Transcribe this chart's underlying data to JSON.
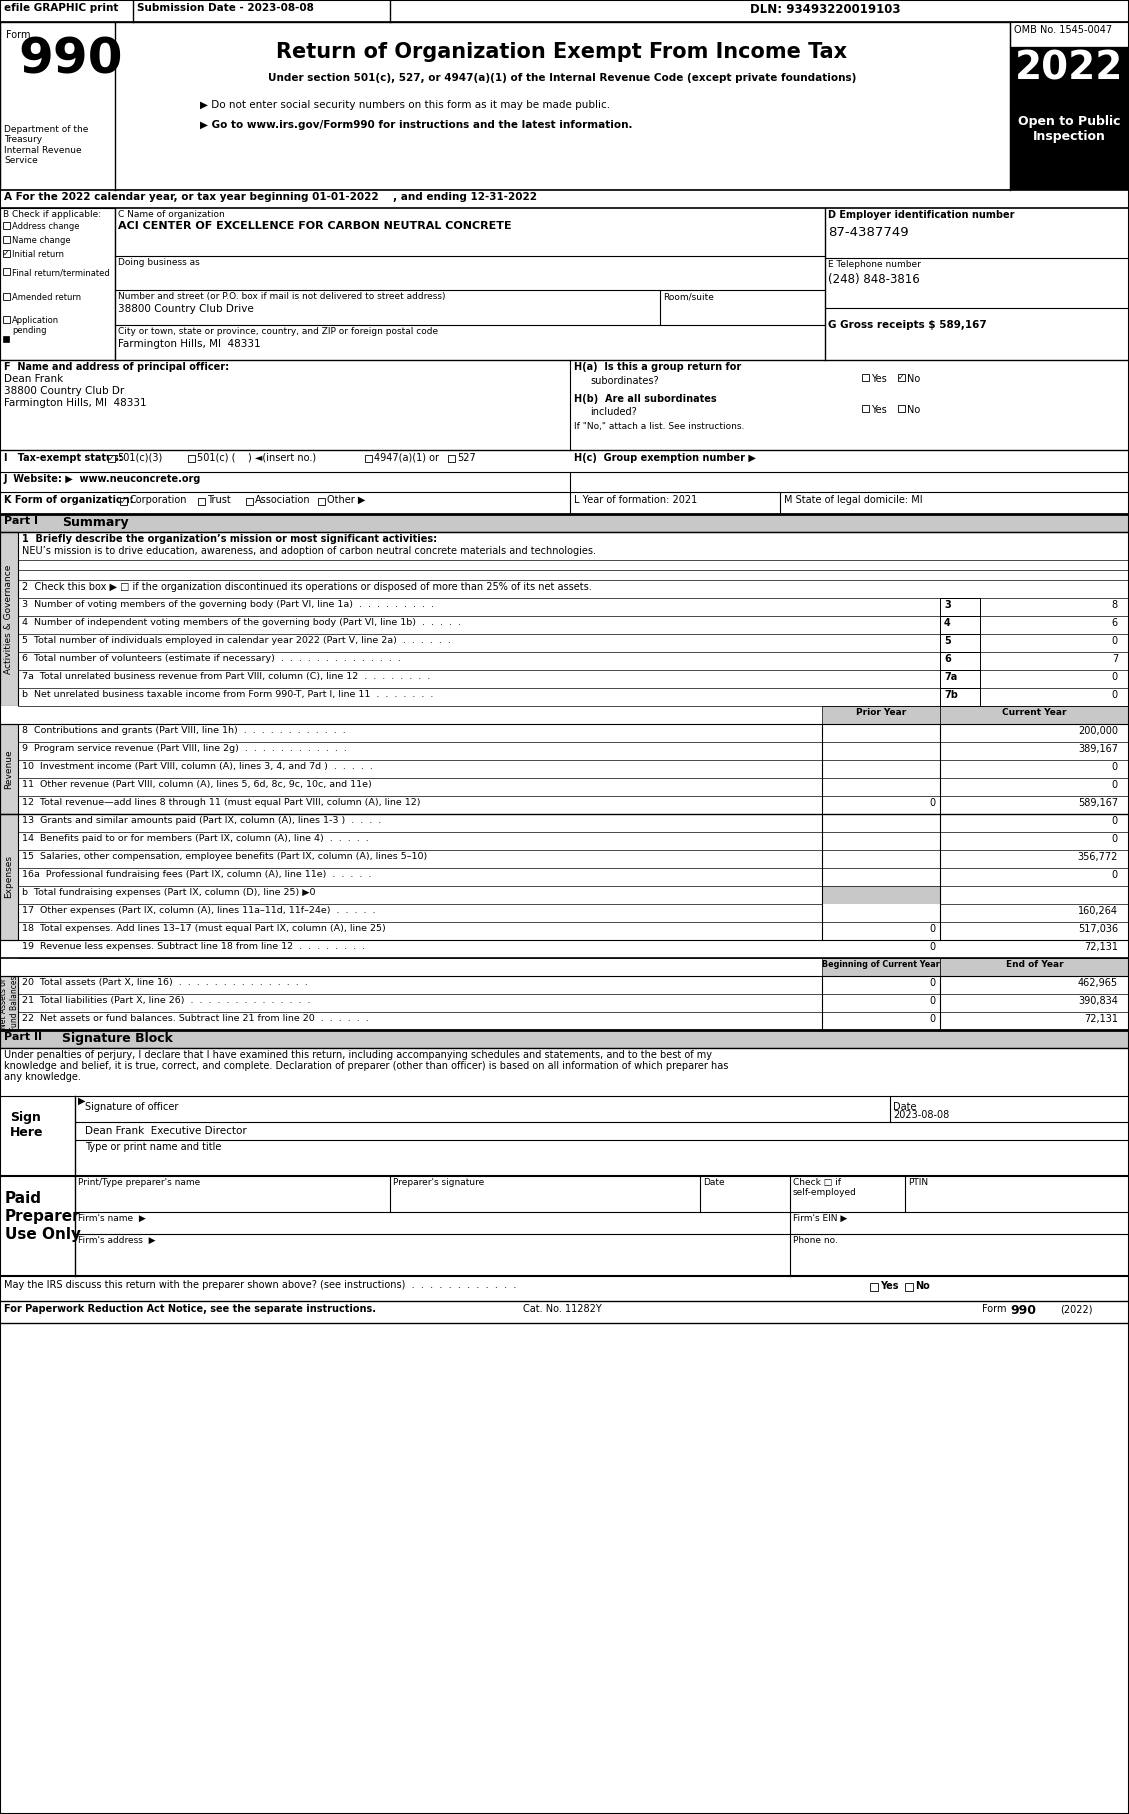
{
  "efile_text": "efile GRAPHIC print",
  "submission_date": "Submission Date - 2023-08-08",
  "dln": "DLN: 93493220019103",
  "form_number": "990",
  "title": "Return of Organization Exempt From Income Tax",
  "subtitle1": "Under section 501(c), 527, or 4947(a)(1) of the Internal Revenue Code (except private foundations)",
  "bullet1": "▶ Do not enter social security numbers on this form as it may be made public.",
  "bullet2": "▶ Go to www.irs.gov/Form990 for instructions and the latest information.",
  "omb": "OMB No. 1545-0047",
  "year": "2022",
  "open_public": "Open to Public\nInspection",
  "dept_line1": "Department of the",
  "dept_line2": "Treasury",
  "dept_line3": "Internal Revenue",
  "dept_line4": "Service",
  "tax_year_line": "A For the 2022 calendar year, or tax year beginning 01-01-2022    , and ending 12-31-2022",
  "b_label": "B Check if applicable:",
  "checkboxes_b": [
    "Address change",
    "Name change",
    "Initial return",
    "Final return/terminated",
    "Amended return",
    "Application\npending"
  ],
  "checked_b": [
    false,
    false,
    true,
    false,
    false,
    false
  ],
  "c_label": "C Name of organization",
  "org_name": "ACI CENTER OF EXCELLENCE FOR CARBON NEUTRAL CONCRETE",
  "dba_label": "Doing business as",
  "street_label": "Number and street (or P.O. box if mail is not delivered to street address)",
  "street": "38800 Country Club Drive",
  "room_label": "Room/suite",
  "city_label": "City or town, state or province, country, and ZIP or foreign postal code",
  "city": "Farmington Hills, MI  48331",
  "d_label": "D Employer identification number",
  "ein": "87-4387749",
  "e_label": "E Telephone number",
  "phone": "(248) 848-3816",
  "g_label": "G Gross receipts $ ",
  "gross_receipts": "589,167",
  "f_label": "F  Name and address of principal officer:",
  "officer_name": "Dean Frank",
  "officer_addr1": "38800 Country Club Dr",
  "officer_addr2": "Farmington Hills, MI  48331",
  "ha_text": "H(a)  Is this a group return for",
  "ha_q": "subordinates?",
  "hb_text": "H(b)  Are all subordinates",
  "hb_q": "included?",
  "hb_note": "If \"No,\" attach a list. See instructions.",
  "hc_text": "H(c)  Group exemption number ▶",
  "i_label": "I   Tax-exempt status:",
  "j_label": "J  Website: ▶  www.neuconcrete.org",
  "k_label": "K Form of organization:",
  "l_label": "L Year of formation: 2021",
  "m_label": "M State of legal domicile: MI",
  "part1_label": "Part I",
  "part1_title": "Summary",
  "line1_label": "1  Briefly describe the organization’s mission or most significant activities:",
  "line1_text": "NEU’s mission is to drive education, awareness, and adoption of carbon neutral concrete materials and technologies.",
  "line2_label": "2  Check this box ▶ □ if the organization discontinued its operations or disposed of more than 25% of its net assets.",
  "line3_label": "3  Number of voting members of the governing body (Part VI, line 1a)  .  .  .  .  .  .  .  .  .",
  "line3_num": "3",
  "line3_val": "8",
  "line4_label": "4  Number of independent voting members of the governing body (Part VI, line 1b)  .  .  .  .  .",
  "line4_num": "4",
  "line4_val": "6",
  "line5_label": "5  Total number of individuals employed in calendar year 2022 (Part V, line 2a)  .  .  .  .  .  .",
  "line5_num": "5",
  "line5_val": "0",
  "line6_label": "6  Total number of volunteers (estimate if necessary)  .  .  .  .  .  .  .  .  .  .  .  .  .  .",
  "line6_num": "6",
  "line6_val": "7",
  "line7a_label": "7a  Total unrelated business revenue from Part VIII, column (C), line 12  .  .  .  .  .  .  .  .",
  "line7a_num": "7a",
  "line7a_val": "0",
  "line7b_label": "b  Net unrelated business taxable income from Form 990-T, Part I, line 11  .  .  .  .  .  .  .",
  "line7b_num": "7b",
  "line7b_val": "0",
  "rev_col_label_prior": "Prior Year",
  "rev_col_label_current": "Current Year",
  "line8_label": "8  Contributions and grants (Part VIII, line 1h)  .  .  .  .  .  .  .  .  .  .  .  .",
  "line8_prior": "",
  "line8_current": "200,000",
  "line9_label": "9  Program service revenue (Part VIII, line 2g)  .  .  .  .  .  .  .  .  .  .  .  .",
  "line9_prior": "",
  "line9_current": "389,167",
  "line10_label": "10  Investment income (Part VIII, column (A), lines 3, 4, and 7d )  .  .  .  .  .",
  "line10_prior": "",
  "line10_current": "0",
  "line11_label": "11  Other revenue (Part VIII, column (A), lines 5, 6d, 8c, 9c, 10c, and 11e)",
  "line11_prior": "",
  "line11_current": "0",
  "line12_label": "12  Total revenue—add lines 8 through 11 (must equal Part VIII, column (A), line 12)",
  "line12_prior": "0",
  "line12_current": "589,167",
  "line13_label": "13  Grants and similar amounts paid (Part IX, column (A), lines 1-3 )  .  .  .  .",
  "line13_prior": "",
  "line13_current": "0",
  "line14_label": "14  Benefits paid to or for members (Part IX, column (A), line 4)  .  .  .  .  .",
  "line14_prior": "",
  "line14_current": "0",
  "line15_label": "15  Salaries, other compensation, employee benefits (Part IX, column (A), lines 5–10)",
  "line15_prior": "",
  "line15_current": "356,772",
  "line16a_label": "16a  Professional fundraising fees (Part IX, column (A), line 11e)  .  .  .  .  .",
  "line16a_prior": "",
  "line16a_current": "0",
  "line16b_label": "b  Total fundraising expenses (Part IX, column (D), line 25) ▶0",
  "line17_label": "17  Other expenses (Part IX, column (A), lines 11a–11d, 11f–24e)  .  .  .  .  .",
  "line17_prior": "",
  "line17_current": "160,264",
  "line18_label": "18  Total expenses. Add lines 13–17 (must equal Part IX, column (A), line 25)",
  "line18_prior": "0",
  "line18_current": "517,036",
  "line19_label": "19  Revenue less expenses. Subtract line 18 from line 12  .  .  .  .  .  .  .  .",
  "line19_prior": "0",
  "line19_current": "72,131",
  "net_assets_prior_label": "Beginning of Current Year",
  "net_assets_current_label": "End of Year",
  "line20_label": "20  Total assets (Part X, line 16)  .  .  .  .  .  .  .  .  .  .  .  .  .  .  .",
  "line20_prior": "0",
  "line20_current": "462,965",
  "line21_label": "21  Total liabilities (Part X, line 26)  .  .  .  .  .  .  .  .  .  .  .  .  .  .",
  "line21_prior": "0",
  "line21_current": "390,834",
  "line22_label": "22  Net assets or fund balances. Subtract line 21 from line 20  .  .  .  .  .  .",
  "line22_prior": "0",
  "line22_current": "72,131",
  "part2_label": "Part II",
  "part2_title": "Signature Block",
  "sig_text1": "Under penalties of perjury, I declare that I have examined this return, including accompanying schedules and statements, and to the best of my",
  "sig_text2": "knowledge and belief, it is true, correct, and complete. Declaration of preparer (other than officer) is based on all information of which preparer has",
  "sig_text3": "any knowledge.",
  "sig_officer_label": "Signature of officer",
  "sig_date": "2023-08-08",
  "sig_date_label": "Date",
  "sig_name": "Dean Frank  Executive Director",
  "sig_name_label": "Type or print name and title",
  "paid_preparer_line1": "Paid",
  "paid_preparer_line2": "Preparer",
  "paid_preparer_line3": "Use Only",
  "prep_name_label": "Print/Type preparer's name",
  "prep_sig_label": "Preparer's signature",
  "prep_date_label": "Date",
  "prep_check_label": "Check □ if\nself-employed",
  "prep_ptin_label": "PTIN",
  "firm_name_label": "Firm's name  ▶",
  "firm_ein_label": "Firm's EIN ▶",
  "firm_addr_label": "Firm's address  ▶",
  "phone_label": "Phone no.",
  "irs_discuss": "May the IRS discuss this return with the preparer shown above? (see instructions)  .  .  .  .  .  .  .  .  .  .  .  .",
  "footer_left": "For Paperwork Reduction Act Notice, see the separate instructions.",
  "footer_cat": "Cat. No. 11282Y",
  "footer_right": "Form 990 (2022)",
  "bg_color": "#ffffff"
}
